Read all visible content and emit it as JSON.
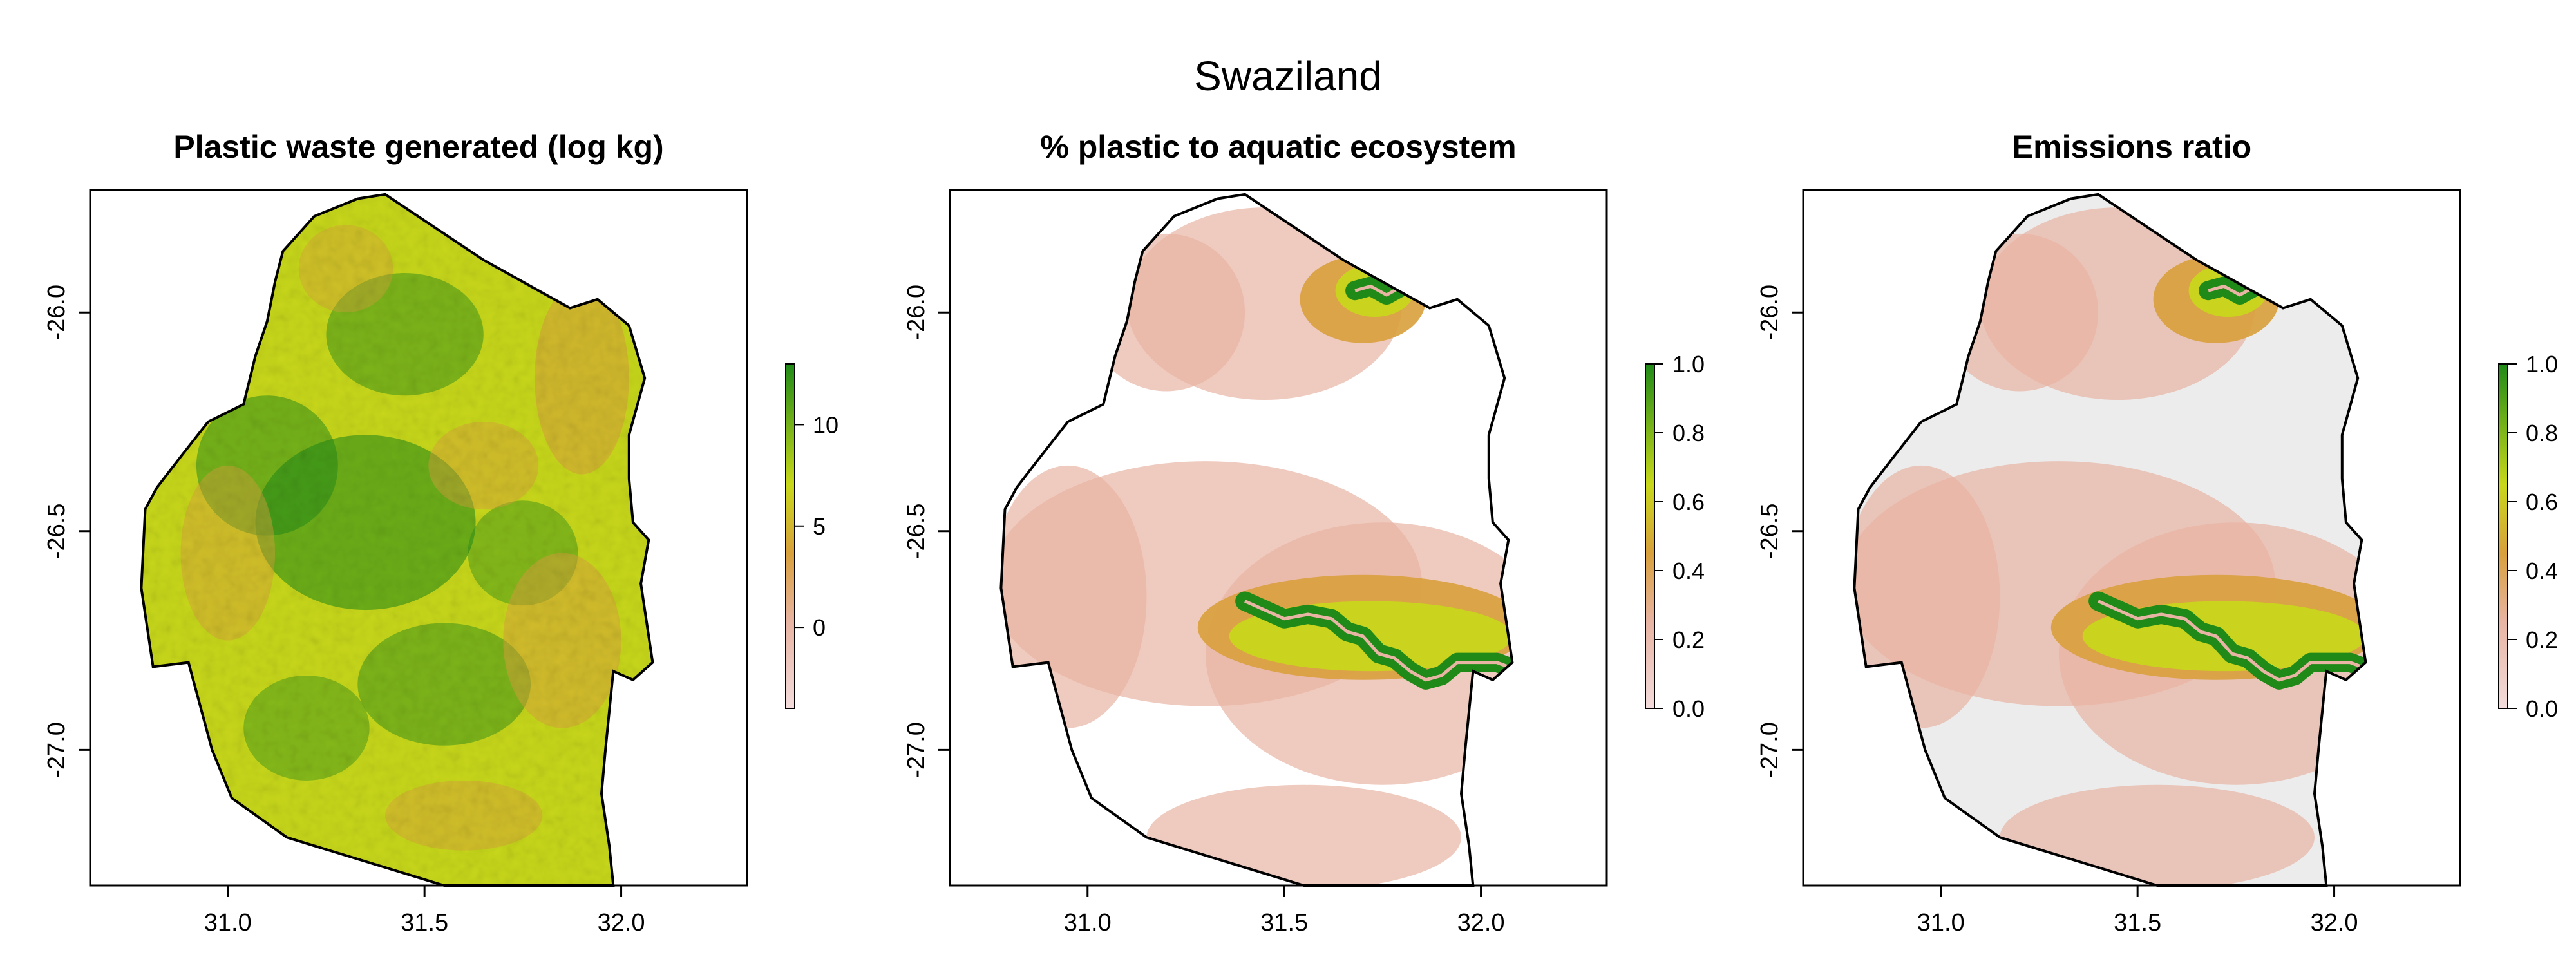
{
  "figure": {
    "title": "Swaziland"
  },
  "colors": {
    "white": "#ffffff",
    "blank": "#ececec",
    "green": "#1f8a18",
    "yellow_green": "#c8d81a",
    "orange": "#d9a03c",
    "salmon": "#e8b4a3",
    "pink_white": "#f3dcdc",
    "border": "#000000"
  },
  "chart_data": [
    {
      "type": "heatmap",
      "title": "Plastic waste generated (log kg)",
      "xlabel": "",
      "ylabel": "",
      "xlim": [
        30.65,
        32.32
      ],
      "ylim": [
        -27.31,
        -25.72
      ],
      "x_ticks": [
        "31.0",
        "31.5",
        "32.0"
      ],
      "y_ticks": [
        "-26.0",
        "-26.5",
        "-27.0"
      ],
      "legend": {
        "position": "right",
        "range": [
          -4,
          13
        ],
        "ticks": [
          "0",
          "5",
          "10"
        ],
        "colors": [
          "#f3dcdc",
          "#d9a03c",
          "#c8d81a",
          "#1f8a18"
        ]
      },
      "outline_lonlat": [
        [
          31.4,
          -25.73
        ],
        [
          31.65,
          -25.88
        ],
        [
          31.87,
          -25.99
        ],
        [
          31.94,
          -25.97
        ],
        [
          32.02,
          -26.03
        ],
        [
          32.06,
          -26.15
        ],
        [
          32.02,
          -26.28
        ],
        [
          32.02,
          -26.38
        ],
        [
          32.03,
          -26.48
        ],
        [
          32.07,
          -26.52
        ],
        [
          32.05,
          -26.62
        ],
        [
          32.08,
          -26.8
        ],
        [
          32.03,
          -26.84
        ],
        [
          31.98,
          -26.82
        ],
        [
          31.96,
          -27.0
        ],
        [
          31.95,
          -27.1
        ],
        [
          31.97,
          -27.22
        ],
        [
          31.98,
          -27.31
        ],
        [
          31.55,
          -27.31
        ],
        [
          31.15,
          -27.2
        ],
        [
          31.01,
          -27.11
        ],
        [
          30.96,
          -27.0
        ],
        [
          30.9,
          -26.8
        ],
        [
          30.81,
          -26.81
        ],
        [
          30.78,
          -26.63
        ],
        [
          30.79,
          -26.45
        ],
        [
          30.82,
          -26.4
        ],
        [
          30.88,
          -26.33
        ],
        [
          30.95,
          -26.25
        ],
        [
          31.04,
          -26.21
        ],
        [
          31.07,
          -26.1
        ],
        [
          31.1,
          -26.02
        ],
        [
          31.12,
          -25.93
        ],
        [
          31.14,
          -25.86
        ],
        [
          31.22,
          -25.78
        ],
        [
          31.33,
          -25.74
        ]
      ]
    },
    {
      "type": "heatmap",
      "title": "% plastic to aquatic ecosystem",
      "xlabel": "",
      "ylabel": "",
      "xlim": [
        30.65,
        32.32
      ],
      "ylim": [
        -27.31,
        -25.72
      ],
      "x_ticks": [
        "31.0",
        "31.5",
        "32.0"
      ],
      "y_ticks": [
        "-26.0",
        "-26.5",
        "-27.0"
      ],
      "legend": {
        "position": "right",
        "range": [
          0,
          1
        ],
        "ticks": [
          "0.0",
          "0.2",
          "0.4",
          "0.6",
          "0.8",
          "1.0"
        ],
        "colors": [
          "#f3dcdc",
          "#d9a03c",
          "#c8d81a",
          "#1f8a18"
        ]
      },
      "river_lonlat": [
        [
          31.4,
          -26.66
        ],
        [
          31.45,
          -26.68
        ],
        [
          31.5,
          -26.7
        ],
        [
          31.56,
          -26.69
        ],
        [
          31.62,
          -26.7
        ],
        [
          31.66,
          -26.73
        ],
        [
          31.7,
          -26.74
        ],
        [
          31.74,
          -26.78
        ],
        [
          31.78,
          -26.79
        ],
        [
          31.82,
          -26.82
        ],
        [
          31.86,
          -26.84
        ],
        [
          31.9,
          -26.83
        ],
        [
          31.94,
          -26.8
        ],
        [
          31.98,
          -26.8
        ],
        [
          32.04,
          -26.8
        ],
        [
          32.1,
          -26.82
        ]
      ],
      "river2_lonlat": [
        [
          31.68,
          -25.95
        ],
        [
          31.72,
          -25.94
        ],
        [
          31.76,
          -25.96
        ],
        [
          31.8,
          -25.94
        ]
      ]
    },
    {
      "type": "heatmap",
      "title": "Emissions ratio",
      "xlabel": "",
      "ylabel": "",
      "xlim": [
        30.65,
        32.32
      ],
      "ylim": [
        -27.31,
        -25.72
      ],
      "x_ticks": [
        "31.0",
        "31.5",
        "32.0"
      ],
      "y_ticks": [
        "-26.0",
        "-26.5",
        "-27.0"
      ],
      "legend": {
        "position": "right",
        "range": [
          0,
          1
        ],
        "ticks": [
          "0.0",
          "0.2",
          "0.4",
          "0.6",
          "0.8",
          "1.0"
        ],
        "colors": [
          "#f3dcdc",
          "#d9a03c",
          "#c8d81a",
          "#1f8a18"
        ]
      },
      "river_lonlat": [
        [
          31.4,
          -26.66
        ],
        [
          31.45,
          -26.68
        ],
        [
          31.5,
          -26.7
        ],
        [
          31.56,
          -26.69
        ],
        [
          31.62,
          -26.7
        ],
        [
          31.66,
          -26.73
        ],
        [
          31.7,
          -26.74
        ],
        [
          31.74,
          -26.78
        ],
        [
          31.78,
          -26.79
        ],
        [
          31.82,
          -26.82
        ],
        [
          31.86,
          -26.84
        ],
        [
          31.9,
          -26.83
        ],
        [
          31.94,
          -26.8
        ],
        [
          31.98,
          -26.8
        ],
        [
          32.04,
          -26.8
        ],
        [
          32.1,
          -26.82
        ]
      ],
      "river2_lonlat": [
        [
          31.68,
          -25.95
        ],
        [
          31.72,
          -25.94
        ],
        [
          31.76,
          -25.96
        ],
        [
          31.8,
          -25.94
        ]
      ]
    }
  ]
}
